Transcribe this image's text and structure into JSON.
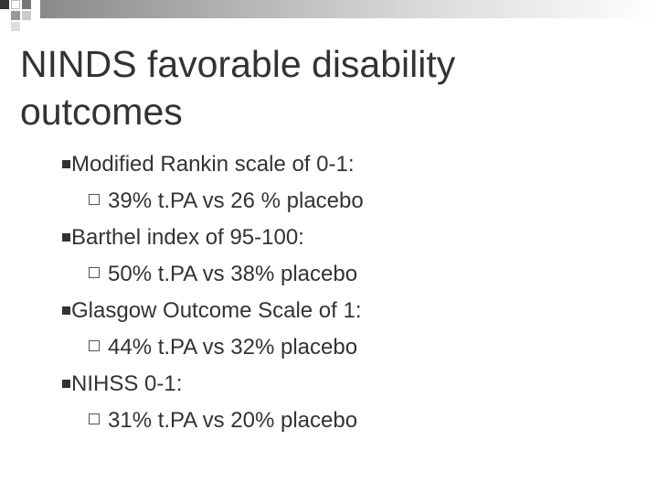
{
  "title": "NINDS favorable disability outcomes",
  "bullets": [
    {
      "text": "Modified Rankin scale of 0-1:",
      "sub": "39% t.PA vs 26 % placebo"
    },
    {
      "text": "Barthel index of 95-100:",
      "sub": "50% t.PA vs 38% placebo"
    },
    {
      "text": "Glasgow Outcome Scale of 1:",
      "sub": "44% t.PA vs 32% placebo"
    },
    {
      "text": "NIHSS 0-1:",
      "sub": "31% t.PA vs 20% placebo"
    }
  ]
}
